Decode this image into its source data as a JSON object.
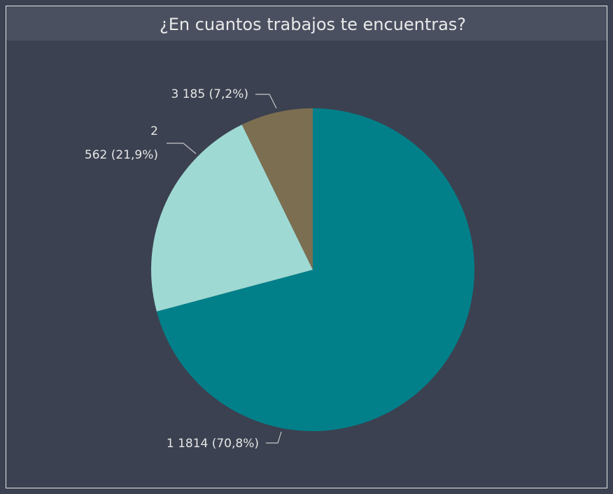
{
  "chart_data": {
    "type": "pie",
    "title": "¿En cuantos trabajos te encuentras?",
    "categories": [
      "1",
      "2",
      "3"
    ],
    "values": [
      1814,
      562,
      185
    ],
    "value_labels": [
      "1814 (70,8%)",
      "562 (21,9%)",
      "185 (7,2%)"
    ],
    "colors": [
      "#01808a",
      "#9fd9d3",
      "#7c6e50"
    ]
  }
}
